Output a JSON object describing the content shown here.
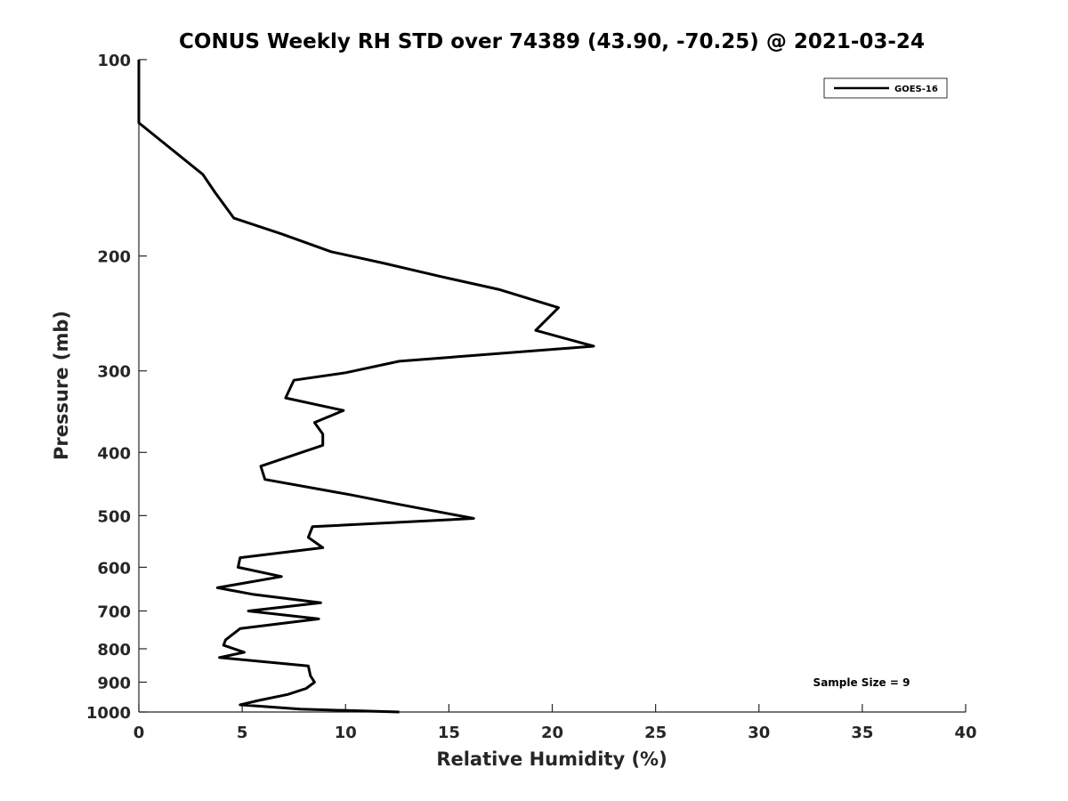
{
  "chart_data": {
    "type": "line",
    "title": "CONUS Weekly RH STD over 74389 (43.90, -70.25) @ 2021-03-24",
    "xlabel": "Relative Humidity (%)",
    "ylabel": "Pressure (mb)",
    "xlim": [
      0,
      40
    ],
    "ylim": [
      100,
      1000
    ],
    "y_scale": "log",
    "y_reversed": true,
    "x_ticks": [
      0,
      5,
      10,
      15,
      20,
      25,
      30,
      35,
      40
    ],
    "y_ticks": [
      100,
      200,
      300,
      400,
      500,
      600,
      700,
      800,
      900,
      1000
    ],
    "grid": false,
    "legend": "top-right",
    "annotation": "Sample Size = 9",
    "series": [
      {
        "name": "GOES-16",
        "color": "#000000",
        "points": [
          [
            0.0,
            100
          ],
          [
            0.0,
            125
          ],
          [
            3.1,
            150
          ],
          [
            3.7,
            160
          ],
          [
            4.6,
            175
          ],
          [
            6.9,
            185
          ],
          [
            9.3,
            197
          ],
          [
            11.8,
            205
          ],
          [
            14.6,
            215
          ],
          [
            17.4,
            225
          ],
          [
            20.3,
            240
          ],
          [
            19.2,
            260
          ],
          [
            22.0,
            275
          ],
          [
            12.6,
            290
          ],
          [
            10.0,
            302
          ],
          [
            7.5,
            310
          ],
          [
            7.1,
            330
          ],
          [
            9.9,
            345
          ],
          [
            8.5,
            360
          ],
          [
            8.9,
            375
          ],
          [
            8.9,
            390
          ],
          [
            5.9,
            420
          ],
          [
            6.1,
            440
          ],
          [
            10.3,
            465
          ],
          [
            12.5,
            480
          ],
          [
            16.2,
            505
          ],
          [
            8.4,
            520
          ],
          [
            8.2,
            540
          ],
          [
            8.9,
            560
          ],
          [
            4.9,
            580
          ],
          [
            4.8,
            600
          ],
          [
            6.9,
            620
          ],
          [
            3.8,
            645
          ],
          [
            5.5,
            660
          ],
          [
            8.8,
            680
          ],
          [
            5.3,
            700
          ],
          [
            8.7,
            720
          ],
          [
            4.9,
            745
          ],
          [
            4.2,
            775
          ],
          [
            4.1,
            790
          ],
          [
            5.1,
            810
          ],
          [
            3.9,
            825
          ],
          [
            8.2,
            850
          ],
          [
            8.3,
            880
          ],
          [
            8.5,
            900
          ],
          [
            8.1,
            920
          ],
          [
            7.2,
            940
          ],
          [
            5.8,
            960
          ],
          [
            4.9,
            975
          ],
          [
            7.8,
            990
          ],
          [
            12.6,
            1000
          ]
        ]
      }
    ]
  }
}
